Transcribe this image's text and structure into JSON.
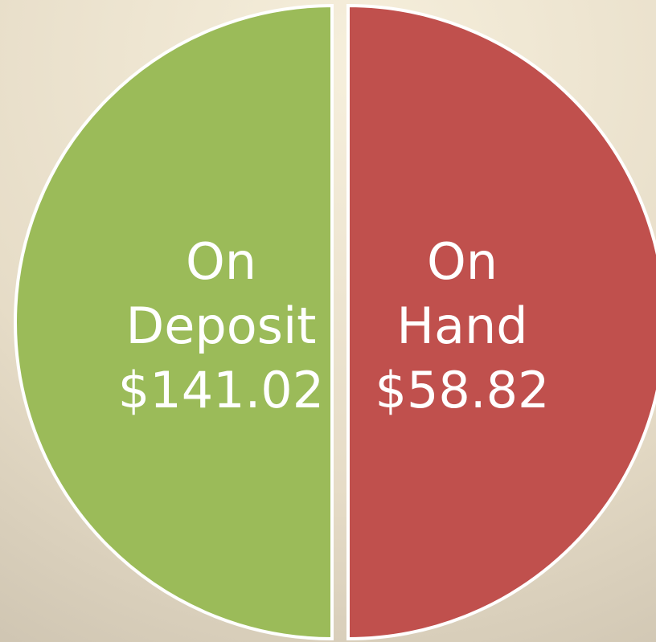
{
  "segments": [
    {
      "label_lines": [
        "On",
        "Deposit"
      ],
      "amount": "$141.02",
      "color": "#9bbb59"
    },
    {
      "label_lines": [
        "On",
        "Hand"
      ],
      "amount": "$58.82",
      "color": "#c0504d"
    }
  ]
}
